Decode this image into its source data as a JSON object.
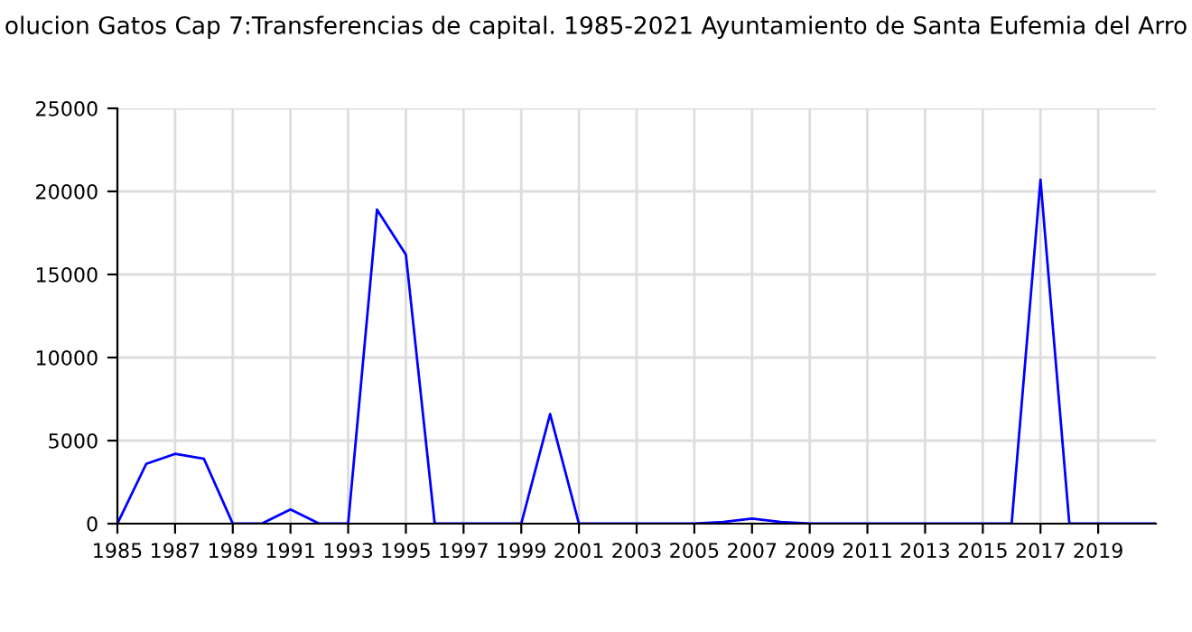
{
  "chart_data": {
    "type": "line",
    "title": "olucion Gatos Cap 7:Transferencias de capital. 1985-2021 Ayuntamiento de Santa Eufemia del Arro",
    "x": [
      1985,
      1986,
      1987,
      1988,
      1989,
      1990,
      1991,
      1992,
      1993,
      1994,
      1995,
      1996,
      1997,
      1998,
      1999,
      2000,
      2001,
      2002,
      2003,
      2004,
      2005,
      2006,
      2007,
      2008,
      2009,
      2010,
      2011,
      2012,
      2013,
      2014,
      2015,
      2016,
      2017,
      2018,
      2019,
      2020,
      2021
    ],
    "series": [
      {
        "color": "#0000ff",
        "values": [
          0,
          3600,
          4200,
          3900,
          0,
          0,
          850,
          0,
          0,
          18900,
          16200,
          0,
          0,
          0,
          0,
          6600,
          0,
          0,
          0,
          0,
          0,
          100,
          300,
          100,
          0,
          0,
          0,
          0,
          0,
          0,
          0,
          0,
          20700,
          0,
          0,
          0,
          0
        ]
      }
    ],
    "xlim": [
      1985,
      2021
    ],
    "xticks": [
      1985,
      1987,
      1989,
      1991,
      1993,
      1995,
      1997,
      1999,
      2001,
      2003,
      2005,
      2007,
      2009,
      2011,
      2013,
      2015,
      2017,
      2019
    ],
    "ylim": [
      0,
      25000
    ],
    "yticks": [
      0,
      5000,
      10000,
      15000,
      20000,
      25000
    ],
    "grid": true,
    "legend": false,
    "marker": "none",
    "line_style": "solid"
  }
}
